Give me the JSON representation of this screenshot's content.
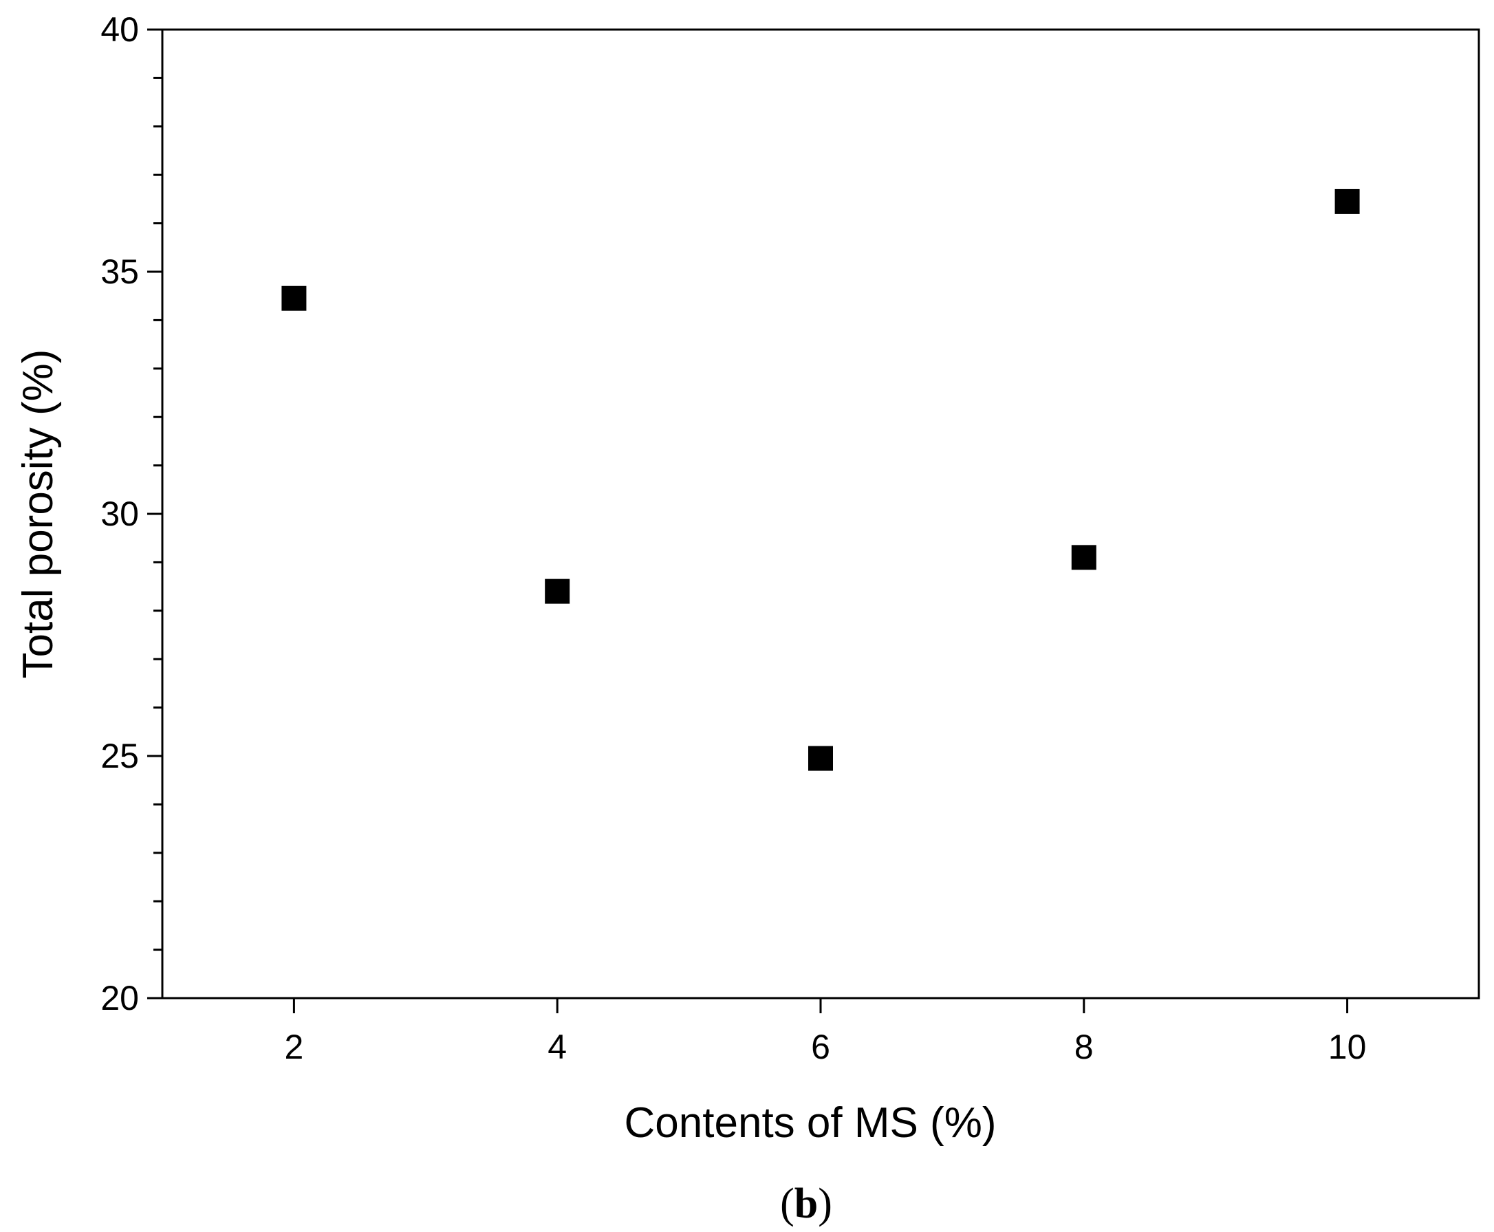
{
  "chart_data": {
    "type": "scatter",
    "title": "",
    "xlabel": "Contents of MS (%)",
    "ylabel": "Total porosity (%)",
    "xlim": [
      1,
      11
    ],
    "ylim": [
      20,
      40
    ],
    "xticks": [
      2,
      4,
      6,
      8,
      10
    ],
    "xtick_labels": [
      "2",
      "4",
      "6",
      "8",
      "10"
    ],
    "yticks": [
      20,
      25,
      30,
      35,
      40
    ],
    "ytick_labels": [
      "20",
      "25",
      "30",
      "35",
      "40"
    ],
    "grid": false,
    "legend": "none",
    "marker": "filled-square",
    "marker_color": "#000000",
    "series": [
      {
        "points": [
          {
            "x": 2,
            "y": 34.45
          },
          {
            "x": 4,
            "y": 28.4
          },
          {
            "x": 6,
            "y": 24.95
          },
          {
            "x": 8,
            "y": 29.1
          },
          {
            "x": 10,
            "y": 36.45
          }
        ]
      }
    ]
  },
  "panel_label": {
    "open": "(",
    "letter": "b",
    "close": ")"
  }
}
